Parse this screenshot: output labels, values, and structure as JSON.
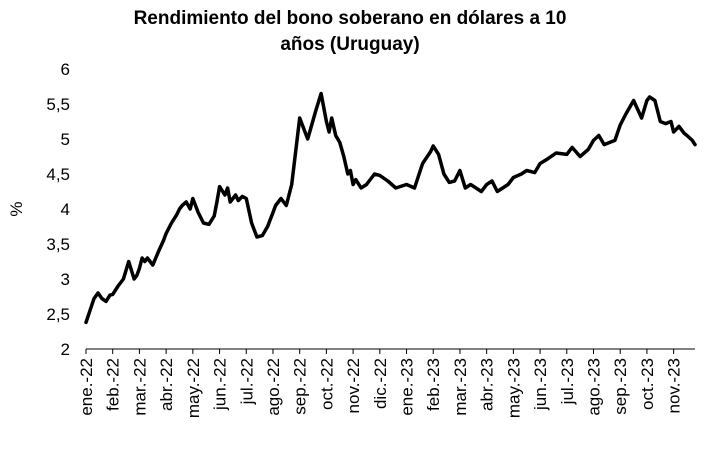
{
  "chart_data": {
    "type": "line",
    "title_lines": [
      "Rendimiento del bono soberano en dólares a 10",
      "años (Uruguay)"
    ],
    "ylabel": "%",
    "xlabel": "",
    "ylim": [
      2,
      6
    ],
    "yticks": [
      "2",
      "2,5",
      "3",
      "3,5",
      "4",
      "4,5",
      "5",
      "5,5",
      "6"
    ],
    "ytick_values": [
      2,
      2.5,
      3,
      3.5,
      4,
      4.5,
      5,
      5.5,
      6
    ],
    "x_categories": [
      "ene.-22",
      "feb.-22",
      "mar.-22",
      "abr.-22",
      "may.-22",
      "jun.-22",
      "jul.-22",
      "ago.-22",
      "sep.-22",
      "oct.-22",
      "nov.-22",
      "dic.-22",
      "ene.-23",
      "feb.-23",
      "mar.-23",
      "abr.-23",
      "may.-23",
      "jun.-23",
      "jul.-23",
      "ago.-23",
      "sep.-23",
      "oct.-23",
      "nov.-23"
    ],
    "grid": false,
    "legend": "none",
    "line_color": "#000000",
    "series": [
      {
        "x": [
          0,
          0.15,
          0.3,
          0.45,
          0.6,
          0.75,
          0.9,
          1.0,
          1.2,
          1.4,
          1.6,
          1.8,
          1.9,
          2.0,
          2.1,
          2.2,
          2.3,
          2.5,
          2.7,
          2.9,
          3.0,
          3.2,
          3.4,
          3.5,
          3.6,
          3.75,
          3.9,
          4.0,
          4.2,
          4.4,
          4.6,
          4.8,
          4.9,
          5.0,
          5.2,
          5.3,
          5.4,
          5.6,
          5.7,
          5.85,
          6.0,
          6.2,
          6.4,
          6.6,
          6.8,
          7.0,
          7.1,
          7.3,
          7.5,
          7.7,
          8.0,
          8.3,
          8.6,
          8.8,
          9.0,
          9.1,
          9.2,
          9.35,
          9.5,
          9.65,
          9.8,
          9.9,
          10.0,
          10.1,
          10.3,
          10.5,
          10.8,
          11.0,
          11.3,
          11.6,
          12.0,
          12.3,
          12.6,
          12.9,
          13.0,
          13.2,
          13.4,
          13.6,
          13.8,
          14.0,
          14.2,
          14.4,
          14.6,
          14.8,
          15.0,
          15.2,
          15.4,
          15.6,
          15.8,
          16.0,
          16.3,
          16.5,
          16.8,
          17.0,
          17.3,
          17.6,
          18.0,
          18.2,
          18.5,
          18.8,
          19.0,
          19.2,
          19.4,
          19.6,
          19.8,
          20.0,
          20.2,
          20.5,
          20.8,
          21.0,
          21.1,
          21.3,
          21.5,
          21.7,
          21.9,
          22.0,
          22.2,
          22.4,
          22.5,
          22.7,
          22.8
        ],
        "y": [
          2.38,
          2.55,
          2.72,
          2.8,
          2.72,
          2.68,
          2.77,
          2.78,
          2.9,
          3.0,
          3.25,
          3.0,
          3.05,
          3.15,
          3.3,
          3.25,
          3.3,
          3.2,
          3.38,
          3.55,
          3.65,
          3.8,
          3.92,
          4.0,
          4.05,
          4.1,
          4.0,
          4.15,
          3.95,
          3.8,
          3.78,
          3.9,
          4.1,
          4.32,
          4.2,
          4.3,
          4.1,
          4.2,
          4.12,
          4.18,
          4.15,
          3.8,
          3.6,
          3.62,
          3.75,
          3.95,
          4.05,
          4.15,
          4.05,
          4.35,
          5.3,
          5.0,
          5.4,
          5.65,
          5.25,
          5.1,
          5.3,
          5.05,
          4.95,
          4.75,
          4.5,
          4.55,
          4.35,
          4.42,
          4.3,
          4.35,
          4.5,
          4.48,
          4.4,
          4.3,
          4.35,
          4.3,
          4.65,
          4.82,
          4.9,
          4.78,
          4.5,
          4.38,
          4.4,
          4.55,
          4.3,
          4.35,
          4.3,
          4.25,
          4.35,
          4.4,
          4.25,
          4.3,
          4.35,
          4.45,
          4.5,
          4.55,
          4.52,
          4.65,
          4.72,
          4.8,
          4.78,
          4.88,
          4.75,
          4.85,
          4.98,
          5.05,
          4.92,
          4.95,
          4.98,
          5.2,
          5.35,
          5.55,
          5.3,
          5.55,
          5.6,
          5.55,
          5.25,
          5.22,
          5.25,
          5.1,
          5.18,
          5.08,
          5.05,
          4.98,
          4.92
        ]
      }
    ]
  }
}
